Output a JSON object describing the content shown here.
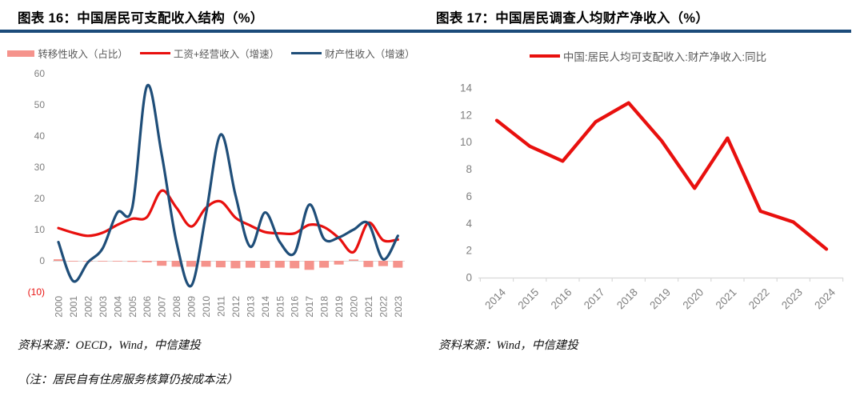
{
  "page": {
    "background": "#ffffff",
    "rule_color": "#1C4B7A",
    "tick_label_color": "#7F7F7F",
    "legend_text_color": "#595959",
    "axis_line_color": "#D9D9D9",
    "negative_tick_color": "#E8100E"
  },
  "figures": [
    {
      "title": "图表 16：中国居民可支配收入结构（%）",
      "source": "资料来源：OECD，Wind，中信建投",
      "note": "（注：居民自有住房服务核算仍按成本法）"
    },
    {
      "title": "图表 17：中国居民调查人均财产净收入（%）",
      "source": "资料来源：Wind，中信建投"
    }
  ],
  "chart_data": [
    {
      "type": "combo-bar-line",
      "title": "中国居民可支配收入结构（%）",
      "categories": [
        "2000",
        "2001",
        "2002",
        "2003",
        "2004",
        "2005",
        "2006",
        "2007",
        "2008",
        "2009",
        "2010",
        "2011",
        "2012",
        "2013",
        "2014",
        "2015",
        "2016",
        "2017",
        "2018",
        "2019",
        "2020",
        "2021",
        "2022",
        "2023"
      ],
      "series": [
        {
          "name": "转移性收入（占比）",
          "type": "bar",
          "color": "#F5938C",
          "values": [
            0.5,
            -0.2,
            -0.2,
            -0.2,
            -0.2,
            -0.3,
            -0.5,
            -1.6,
            -1.9,
            -1.9,
            -1.9,
            -2.1,
            -2.4,
            -2.2,
            -2.3,
            -2.2,
            -2.4,
            -2.9,
            -2.2,
            -1.2,
            0.4,
            -2.0,
            -1.7,
            -2.2
          ]
        },
        {
          "name": "工资+经营收入（增速）",
          "type": "line",
          "smooth": true,
          "color": "#E8100E",
          "values": [
            10.5,
            9.0,
            8.0,
            9.0,
            11.5,
            13.5,
            14.0,
            22.5,
            17.0,
            11.0,
            17.0,
            19.0,
            13.8,
            11.3,
            9.2,
            8.8,
            8.8,
            11.5,
            10.8,
            7.3,
            2.8,
            12.2,
            6.6,
            6.8
          ]
        },
        {
          "name": "财产性收入（增速）",
          "type": "line",
          "smooth": true,
          "color": "#1F4E79",
          "values": [
            6.0,
            -6.5,
            -0.5,
            4.0,
            15.5,
            17.0,
            56.0,
            34.0,
            6.0,
            -8.0,
            15.0,
            40.5,
            21.0,
            4.5,
            15.5,
            6.0,
            2.5,
            18.0,
            7.0,
            7.5,
            10.0,
            12.0,
            0.5,
            8.0
          ]
        }
      ],
      "ylim": [
        -10,
        60
      ],
      "yticks": [
        {
          "v": 60,
          "label": "60"
        },
        {
          "v": 50,
          "label": "50"
        },
        {
          "v": 40,
          "label": "40"
        },
        {
          "v": 30,
          "label": "30"
        },
        {
          "v": 20,
          "label": "20"
        },
        {
          "v": 10,
          "label": "10"
        },
        {
          "v": 0,
          "label": "0"
        },
        {
          "v": -10,
          "label": "(10)",
          "color": "#E8100E"
        }
      ],
      "grid": false,
      "legend_position": "top"
    },
    {
      "type": "line",
      "title": "中国居民调查人均财产净收入（%）",
      "categories": [
        "2014",
        "2015",
        "2016",
        "2017",
        "2018",
        "2019",
        "2020",
        "2021",
        "2022",
        "2023",
        "2024"
      ],
      "series": [
        {
          "name": "中国:居民人均可支配收入:财产净收入:同比",
          "type": "line",
          "smooth": false,
          "color": "#E8100E",
          "values": [
            11.6,
            9.7,
            8.6,
            11.5,
            12.9,
            10.1,
            6.6,
            10.3,
            4.9,
            4.1,
            2.1
          ]
        }
      ],
      "ylim": [
        0,
        14
      ],
      "yticks": [
        {
          "v": 0,
          "label": "0"
        },
        {
          "v": 2,
          "label": "2"
        },
        {
          "v": 4,
          "label": "4"
        },
        {
          "v": 6,
          "label": "6"
        },
        {
          "v": 8,
          "label": "8"
        },
        {
          "v": 10,
          "label": "10"
        },
        {
          "v": 12,
          "label": "12"
        },
        {
          "v": 14,
          "label": "14"
        }
      ],
      "grid": false,
      "x_axis_line": true,
      "legend_position": "top"
    }
  ]
}
